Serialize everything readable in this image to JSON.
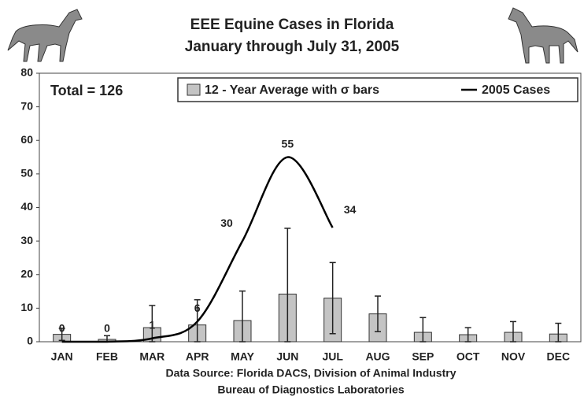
{
  "chart_data": {
    "type": "bar-line",
    "title": "EEE Equine Cases in Florida",
    "subtitle": "January through July 31, 2005",
    "annotation": "Total = 126",
    "source": [
      "Data Source: Florida DACS, Division of Animal Industry",
      "Bureau of Diagnostics Laboratories"
    ],
    "categories": [
      "JAN",
      "FEB",
      "MAR",
      "APR",
      "MAY",
      "JUN",
      "JUL",
      "AUG",
      "SEP",
      "OCT",
      "NOV",
      "DEC"
    ],
    "series": [
      {
        "name": "12 - Year Average with σ bars",
        "color": "#c4c4c4",
        "values": [
          2.2,
          0.7,
          4.2,
          5,
          6.3,
          14.2,
          13,
          8.3,
          2.8,
          2.1,
          2.8,
          2.3
        ],
        "errors": [
          1.8,
          1.1,
          6.6,
          7.5,
          8.8,
          19.6,
          10.6,
          5.3,
          4.4,
          2.1,
          3.2,
          3.2
        ]
      },
      {
        "name": "2005 Cases",
        "color": "#000000",
        "values": [
          0,
          0,
          1,
          6,
          30,
          55,
          34,
          null,
          null,
          null,
          null,
          null
        ]
      }
    ],
    "ylim": [
      0,
      80
    ],
    "yticks": [
      0,
      10,
      20,
      30,
      40,
      50,
      60,
      70,
      80
    ],
    "grid": false
  }
}
